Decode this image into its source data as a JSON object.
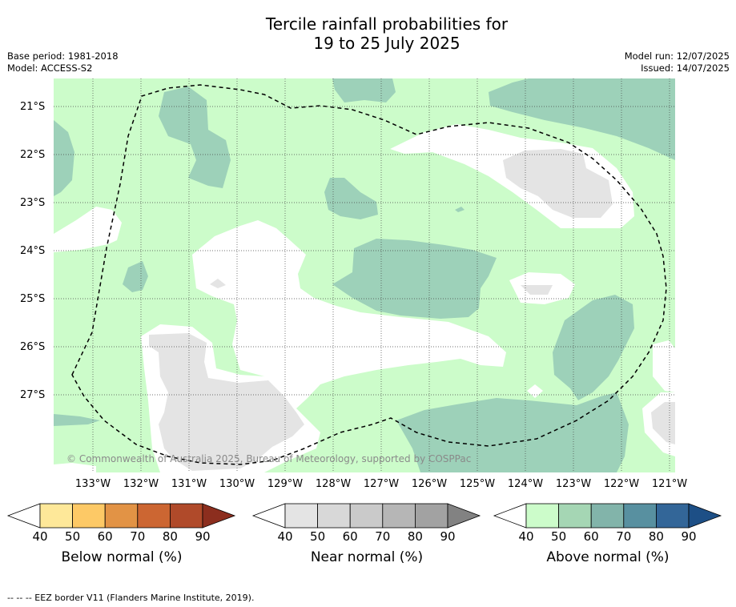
{
  "title": {
    "line1": "Tercile rainfall probabilities for",
    "line2": "19 to 25 July 2025"
  },
  "meta": {
    "base_period": "Base period: 1981-2018",
    "model": "Model: ACCESS-S2",
    "model_run": "Model run: 12/07/2025",
    "issued": "Issued: 14/07/2025"
  },
  "map": {
    "lat_labels": [
      "21°S",
      "22°S",
      "23°S",
      "24°S",
      "25°S",
      "26°S",
      "27°S"
    ],
    "lon_labels": [
      "133°W",
      "132°W",
      "131°W",
      "130°W",
      "129°W",
      "128°W",
      "127°W",
      "126°W",
      "125°W",
      "124°W",
      "123°W",
      "122°W",
      "121°W"
    ],
    "copyright": "© Commonwealth of Australia 2025, Bureau of Meteorology, supported by COSPPac",
    "colors": {
      "no_signal": "#ffffff",
      "above_40_50": "#ccfcca",
      "above_50_60": "#9dd1b9",
      "near_40_50": "#e4e4e4"
    },
    "eez_border_style": "dashed"
  },
  "colorbars": [
    {
      "title": "Below normal (%)",
      "ticks": [
        "40",
        "50",
        "60",
        "70",
        "80",
        "90"
      ],
      "colors": [
        "#ffffff",
        "#fee899",
        "#fdc966",
        "#e29345",
        "#cc6632",
        "#b04a2a",
        "#8c2e1e"
      ]
    },
    {
      "title": "Near normal (%)",
      "ticks": [
        "40",
        "50",
        "60",
        "70",
        "80",
        "90"
      ],
      "colors": [
        "#ffffff",
        "#e4e4e4",
        "#d8d8d8",
        "#cacaca",
        "#b6b6b6",
        "#a2a2a2",
        "#828282"
      ]
    },
    {
      "title": "Above normal (%)",
      "ticks": [
        "40",
        "50",
        "60",
        "70",
        "80",
        "90"
      ],
      "colors": [
        "#ffffff",
        "#ccfcca",
        "#a5d6b4",
        "#82b4aa",
        "#5890a0",
        "#336698",
        "#1d4f86"
      ]
    }
  ],
  "footnote": "--  --  -- EEZ border V11 (Flanders Marine Institute, 2019)."
}
